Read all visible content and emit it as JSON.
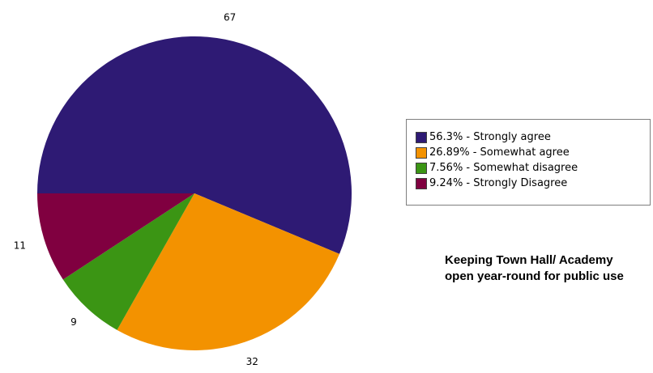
{
  "chart_data": {
    "type": "pie",
    "title": "",
    "categories": [
      "Strongly agree",
      "Somewhat agree",
      "Somewhat disagree",
      "Strongly Disagree"
    ],
    "values": [
      67,
      32,
      9,
      11
    ],
    "data_labels": [
      "67",
      "32",
      "9",
      "11"
    ],
    "colors": [
      "#2e1a74",
      "#f39200",
      "#3b9514",
      "#800040"
    ],
    "legend": {
      "placement": "right",
      "entries": [
        "56.3% - Strongly agree",
        "26.89% - Somewhat agree",
        "7.56% - Somewhat disagree",
        "9.24% - Strongly Disagree"
      ]
    },
    "annotation": "Keeping Town Hall/ Academy open year-round for public use"
  }
}
